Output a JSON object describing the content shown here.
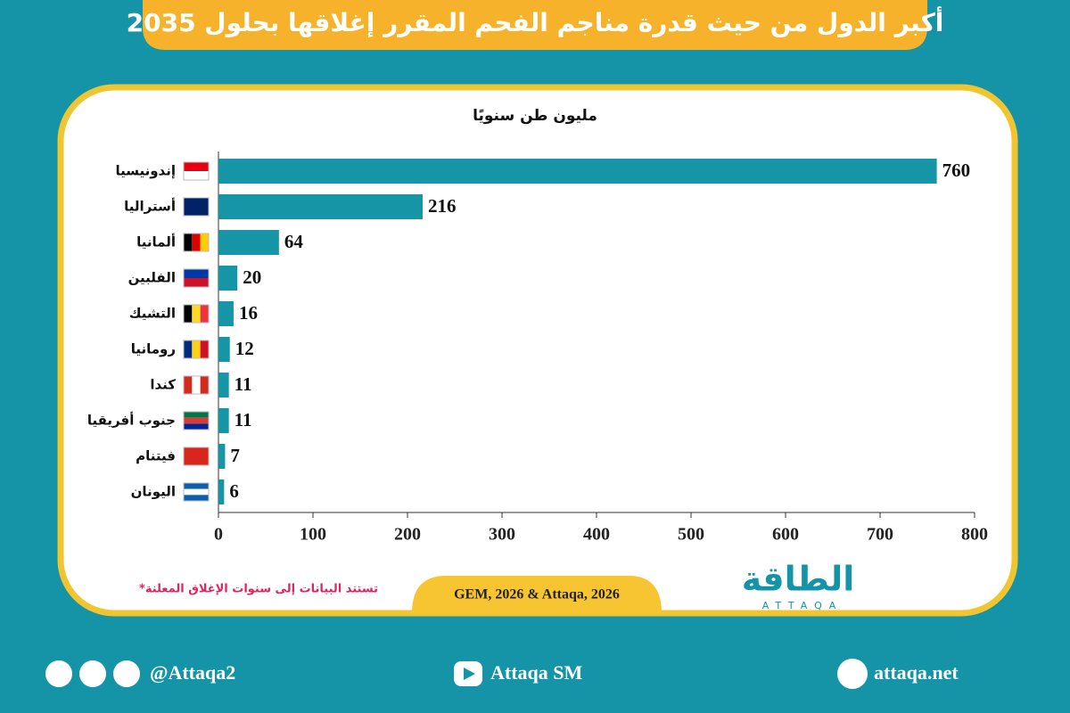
{
  "chart_data": {
    "type": "hbar",
    "title": "أكبر الدول من حيث قدرة مناجم الفحم المقرر إغلاقها بحلول 2035",
    "subtitle": "مليون طن سنويًا",
    "categories": [
      "إندونيسيا",
      "أستراليا",
      "ألمانيا",
      "الفلبين",
      "التشيك",
      "رومانيا",
      "كندا",
      "جنوب أفريقيا",
      "فيتنام",
      "اليونان"
    ],
    "values": [
      760,
      216,
      64,
      20,
      16,
      12,
      11,
      11,
      7,
      6
    ],
    "color": "#1695a6",
    "xlim": [
      0,
      800
    ],
    "xticks": [
      0,
      100,
      200,
      300,
      400,
      500,
      600,
      700,
      800
    ],
    "note": "*تستند البيانات إلى سنوات الإغلاق المعلنة",
    "source": "GEM, 2026 & Attaqa, 2026"
  },
  "brand": {
    "name": "الطاقة",
    "latin": "ATTAQA"
  },
  "footer": {
    "social": "@Attaqa2",
    "youtube": "Attaqa SM",
    "web": "attaqa.net"
  }
}
